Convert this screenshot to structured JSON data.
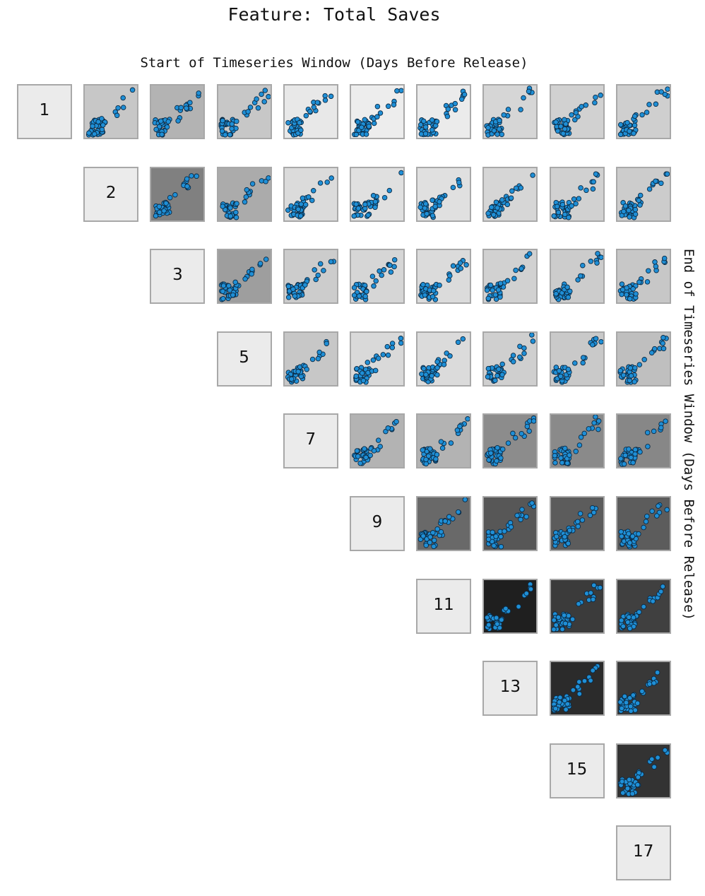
{
  "title": "Feature: Total Saves",
  "chart_data": {
    "type": "scatter",
    "title": "Feature: Total Saves",
    "layout": "upper-triangular scatter-plot matrix",
    "xlabel": "Start of Timeseries Window (Days Before Release)",
    "ylabel": "End of Timeseries Window (Days Before Release)",
    "window_days": [
      1,
      2,
      3,
      5,
      7,
      9,
      11,
      13,
      15,
      17
    ],
    "marker_color": "#1f8fd6",
    "marker_edge": "#0b2a44",
    "shade_scale": "lighter background = lower value, darker = higher",
    "cells": [
      {
        "row": 0,
        "col": 1,
        "shade": 0.78
      },
      {
        "row": 0,
        "col": 2,
        "shade": 0.7
      },
      {
        "row": 0,
        "col": 3,
        "shade": 0.78
      },
      {
        "row": 0,
        "col": 4,
        "shade": 0.91
      },
      {
        "row": 0,
        "col": 5,
        "shade": 0.93
      },
      {
        "row": 0,
        "col": 6,
        "shade": 0.92
      },
      {
        "row": 0,
        "col": 7,
        "shade": 0.84
      },
      {
        "row": 0,
        "col": 8,
        "shade": 0.82
      },
      {
        "row": 0,
        "col": 9,
        "shade": 0.81
      },
      {
        "row": 1,
        "col": 2,
        "shade": 0.5
      },
      {
        "row": 1,
        "col": 3,
        "shade": 0.67
      },
      {
        "row": 1,
        "col": 4,
        "shade": 0.86
      },
      {
        "row": 1,
        "col": 5,
        "shade": 0.88
      },
      {
        "row": 1,
        "col": 6,
        "shade": 0.88
      },
      {
        "row": 1,
        "col": 7,
        "shade": 0.84
      },
      {
        "row": 1,
        "col": 8,
        "shade": 0.82
      },
      {
        "row": 1,
        "col": 9,
        "shade": 0.8
      },
      {
        "row": 2,
        "col": 3,
        "shade": 0.62
      },
      {
        "row": 2,
        "col": 4,
        "shade": 0.8
      },
      {
        "row": 2,
        "col": 5,
        "shade": 0.84
      },
      {
        "row": 2,
        "col": 6,
        "shade": 0.86
      },
      {
        "row": 2,
        "col": 7,
        "shade": 0.82
      },
      {
        "row": 2,
        "col": 8,
        "shade": 0.8
      },
      {
        "row": 2,
        "col": 9,
        "shade": 0.78
      },
      {
        "row": 3,
        "col": 4,
        "shade": 0.78
      },
      {
        "row": 3,
        "col": 5,
        "shade": 0.85
      },
      {
        "row": 3,
        "col": 6,
        "shade": 0.86
      },
      {
        "row": 3,
        "col": 7,
        "shade": 0.81
      },
      {
        "row": 3,
        "col": 8,
        "shade": 0.79
      },
      {
        "row": 3,
        "col": 9,
        "shade": 0.75
      },
      {
        "row": 4,
        "col": 5,
        "shade": 0.7
      },
      {
        "row": 4,
        "col": 6,
        "shade": 0.7
      },
      {
        "row": 4,
        "col": 7,
        "shade": 0.55
      },
      {
        "row": 4,
        "col": 8,
        "shade": 0.54
      },
      {
        "row": 4,
        "col": 9,
        "shade": 0.53
      },
      {
        "row": 5,
        "col": 6,
        "shade": 0.41
      },
      {
        "row": 5,
        "col": 7,
        "shade": 0.34
      },
      {
        "row": 5,
        "col": 8,
        "shade": 0.36
      },
      {
        "row": 5,
        "col": 9,
        "shade": 0.36
      },
      {
        "row": 6,
        "col": 7,
        "shade": 0.12
      },
      {
        "row": 6,
        "col": 8,
        "shade": 0.23
      },
      {
        "row": 6,
        "col": 9,
        "shade": 0.25
      },
      {
        "row": 7,
        "col": 8,
        "shade": 0.17
      },
      {
        "row": 7,
        "col": 9,
        "shade": 0.22
      },
      {
        "row": 8,
        "col": 9,
        "shade": 0.2
      }
    ]
  }
}
